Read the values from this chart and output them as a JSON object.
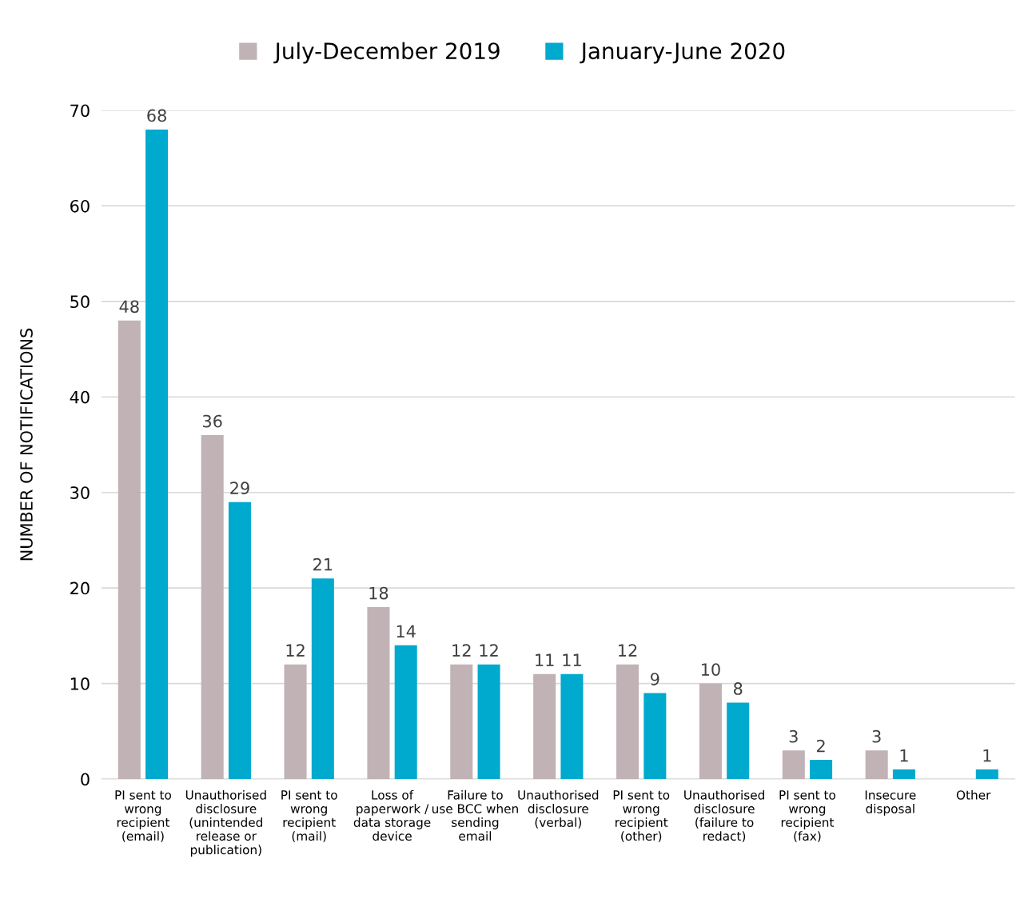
{
  "chart_data": {
    "type": "bar",
    "ylabel": "NUMBER OF NOTIFICATIONS",
    "categories": [
      "PI sent to wrong recipient (email)",
      "Unauthorised disclosure (unintended release or publication)",
      "PI sent to wrong recipient (mail)",
      "Loss of paperwork / data storage device",
      "Failure to use BCC when sending email",
      "Unauthorised disclosure (verbal)",
      "PI sent to wrong recipient (other)",
      "Unauthorised disclosure (failure to redact)",
      "PI sent to wrong recipient (fax)",
      "Insecure disposal",
      "Other"
    ],
    "series": [
      {
        "name": "July-December 2019",
        "color": "#c0b2b5",
        "values": [
          48,
          36,
          12,
          18,
          12,
          11,
          12,
          10,
          3,
          3,
          null
        ]
      },
      {
        "name": "January-June 2020",
        "color": "#00a9ce",
        "values": [
          68,
          29,
          21,
          14,
          12,
          11,
          9,
          8,
          2,
          1,
          1
        ]
      }
    ],
    "ylim": [
      0,
      70
    ],
    "yticks": [
      0,
      10,
      20,
      30,
      40,
      50,
      60,
      70
    ],
    "grid": "y",
    "legend": "top",
    "data_labels": true
  }
}
